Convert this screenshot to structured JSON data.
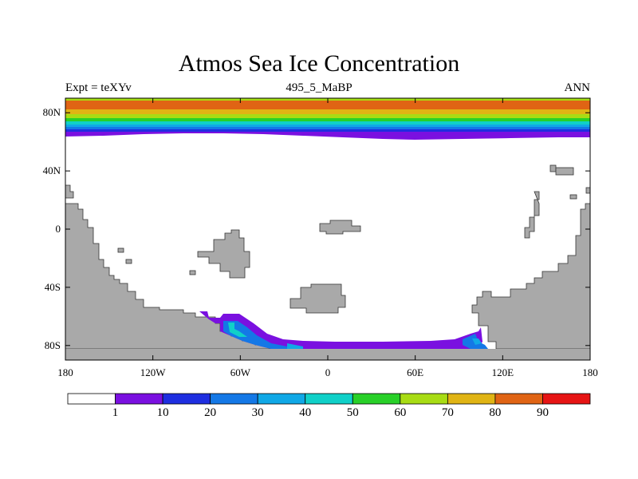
{
  "title": "Atmos Sea Ice Concentration",
  "header": {
    "left": "Expt = teXYv",
    "center": "495_5_MaBP",
    "right": "ANN"
  },
  "map": {
    "projection": "cylindrical-equidistant",
    "lon_range": [
      -180,
      180
    ],
    "lat_range": [
      -90,
      90
    ],
    "land_color": "#a9a9a9",
    "ocean_color": "#ffffff"
  },
  "axes": {
    "lat_ticks": [
      {
        "value": 80,
        "label": "80N"
      },
      {
        "value": 40,
        "label": "40N"
      },
      {
        "value": 0,
        "label": "0"
      },
      {
        "value": -40,
        "label": "40S"
      },
      {
        "value": -80,
        "label": "80S"
      }
    ],
    "lon_ticks": [
      {
        "value": -180,
        "label": "180"
      },
      {
        "value": -120,
        "label": "120W"
      },
      {
        "value": -60,
        "label": "60W"
      },
      {
        "value": 0,
        "label": "0"
      },
      {
        "value": 60,
        "label": "60E"
      },
      {
        "value": 120,
        "label": "120E"
      },
      {
        "value": 180,
        "label": "180"
      }
    ]
  },
  "colorbar": {
    "colors": [
      "#ffffff",
      "#7a10e0",
      "#1e2ee0",
      "#1478e6",
      "#10a8e6",
      "#10d0c8",
      "#28d028",
      "#a8dc14",
      "#e0b414",
      "#e06414",
      "#e61414"
    ],
    "labels": [
      "1",
      "10",
      "20",
      "30",
      "40",
      "50",
      "60",
      "70",
      "80",
      "90"
    ]
  }
}
